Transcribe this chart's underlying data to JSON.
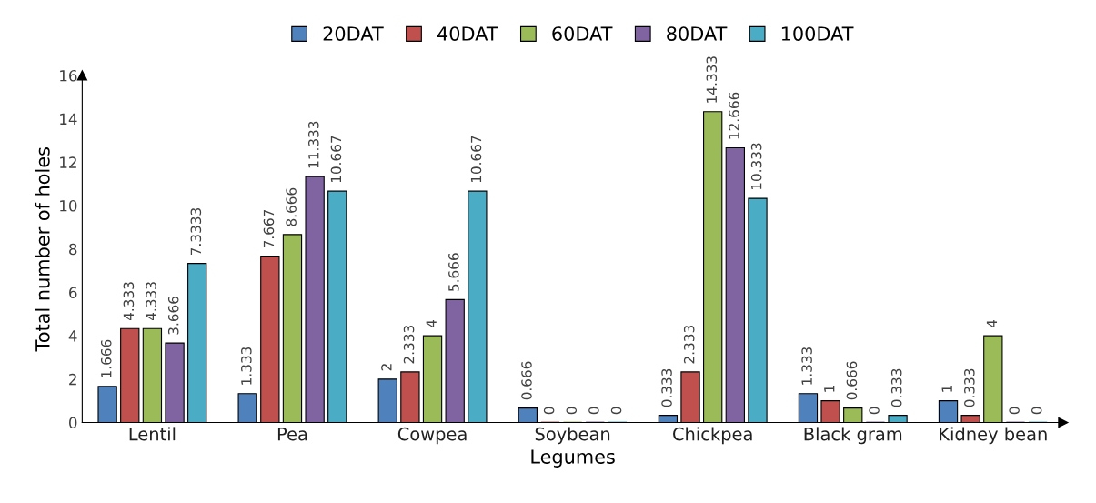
{
  "chart_data": {
    "type": "bar",
    "xlabel": "Legumes",
    "ylabel": "Total number of holes",
    "categories": [
      "Lentil",
      "Pea",
      "Cowpea",
      "Soybean",
      "Chickpea",
      "Black gram",
      "Kidney bean"
    ],
    "series": [
      {
        "name": "20DAT",
        "color": "#4f81bd",
        "values": [
          1.666,
          1.333,
          2,
          0.666,
          0.333,
          1.333,
          1
        ]
      },
      {
        "name": "40DAT",
        "color": "#c0504d",
        "values": [
          4.333,
          7.667,
          2.333,
          0,
          2.333,
          1,
          0.333
        ]
      },
      {
        "name": "60DAT",
        "color": "#9bbb59",
        "values": [
          4.333,
          8.666,
          4,
          0,
          14.333,
          0.666,
          4
        ]
      },
      {
        "name": "80DAT",
        "color": "#8064a2",
        "values": [
          3.666,
          11.333,
          5.666,
          0,
          12.666,
          0,
          0
        ]
      },
      {
        "name": "100DAT",
        "color": "#4bacc6",
        "values": [
          7.3333,
          10.667,
          10.667,
          0,
          10.333,
          0.333,
          0
        ]
      }
    ],
    "ylim": [
      0,
      16
    ],
    "yticks": [
      0,
      2,
      4,
      6,
      8,
      10,
      12,
      14,
      16
    ],
    "data_labels": true,
    "legend": "top",
    "grid": false
  }
}
